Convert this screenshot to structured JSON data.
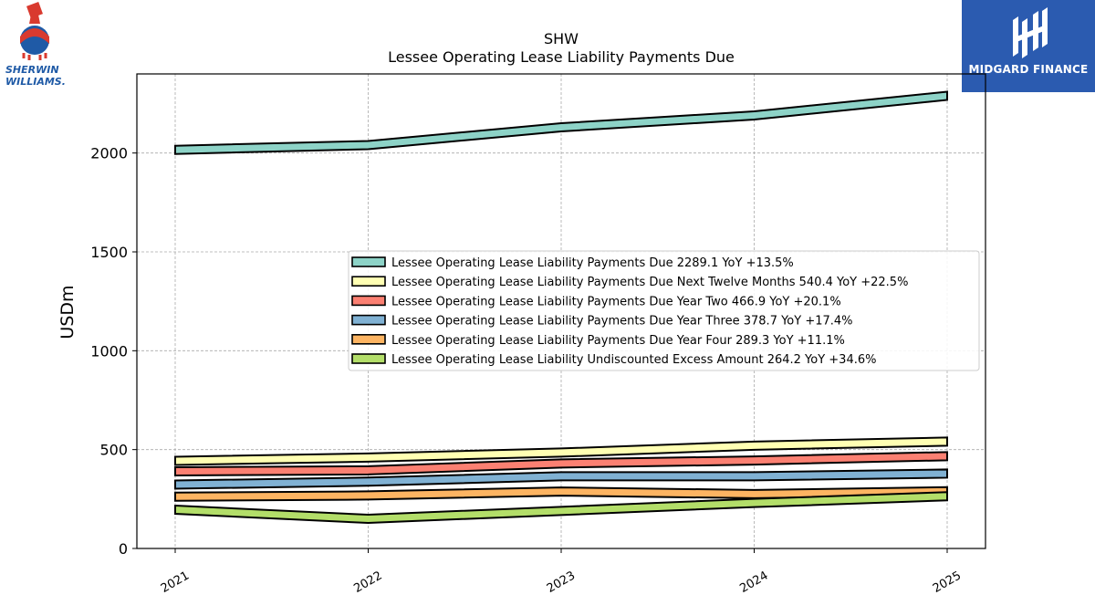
{
  "brand": {
    "left_logo_line1": "SHERWIN",
    "left_logo_line2": "WILLIAMS.",
    "right_logo_text": "MIDGARD FINANCE"
  },
  "chart_data": {
    "type": "area",
    "title": "SHW",
    "subtitle": "Lessee Operating Lease Liability Payments Due",
    "xlabel": "",
    "ylabel": "USDm",
    "x": [
      "2021",
      "2022",
      "2023",
      "2024",
      "2025"
    ],
    "ylim": [
      0,
      2400
    ],
    "yticks": [
      0,
      500,
      1000,
      1500,
      2000
    ],
    "grid": true,
    "legend_position": "center-right",
    "series": [
      {
        "name": "Lessee Operating Lease Liability Payments Due",
        "legend": "Lessee Operating Lease Liability Payments Due  2289.1 YoY +13.5%",
        "color": "#8dd3c7",
        "values": [
          2016,
          2040,
          2130,
          2190,
          2289.1
        ]
      },
      {
        "name": "Lessee Operating Lease Liability Payments Due Next Twelve Months",
        "legend": "Lessee Operating Lease Liability Payments Due Next Twelve Months  540.4 YoY +22.5%",
        "color": "#ffffb3",
        "values": [
          443,
          460,
          485,
          520,
          540.4
        ]
      },
      {
        "name": "Lessee Operating Lease Liability Payments Due Year Two",
        "legend": "Lessee Operating Lease Liability Payments Due Year Two  466.9 YoY +20.1%",
        "color": "#fb8072",
        "values": [
          390,
          395,
          430,
          445,
          466.9
        ]
      },
      {
        "name": "Lessee Operating Lease Liability Payments Due Year Three",
        "legend": "Lessee Operating Lease Liability Payments Due Year Three  378.7 YoY +17.4%",
        "color": "#80b1d3",
        "values": [
          323,
          338,
          365,
          365,
          378.7
        ]
      },
      {
        "name": "Lessee Operating Lease Liability Payments Due Year Four",
        "legend": "Lessee Operating Lease Liability Payments Due Year Four  289.3 YoY +11.1%",
        "color": "#fdb462",
        "values": [
          262,
          268,
          288,
          275,
          289.3
        ]
      },
      {
        "name": "Lessee Operating Lease Liability Undiscounted Excess Amount",
        "legend": "Lessee Operating Lease Liability Undiscounted Excess Amount  264.2 YoY +34.6%",
        "color": "#b3de69",
        "values": [
          196,
          150,
          190,
          230,
          264.2
        ]
      }
    ]
  }
}
